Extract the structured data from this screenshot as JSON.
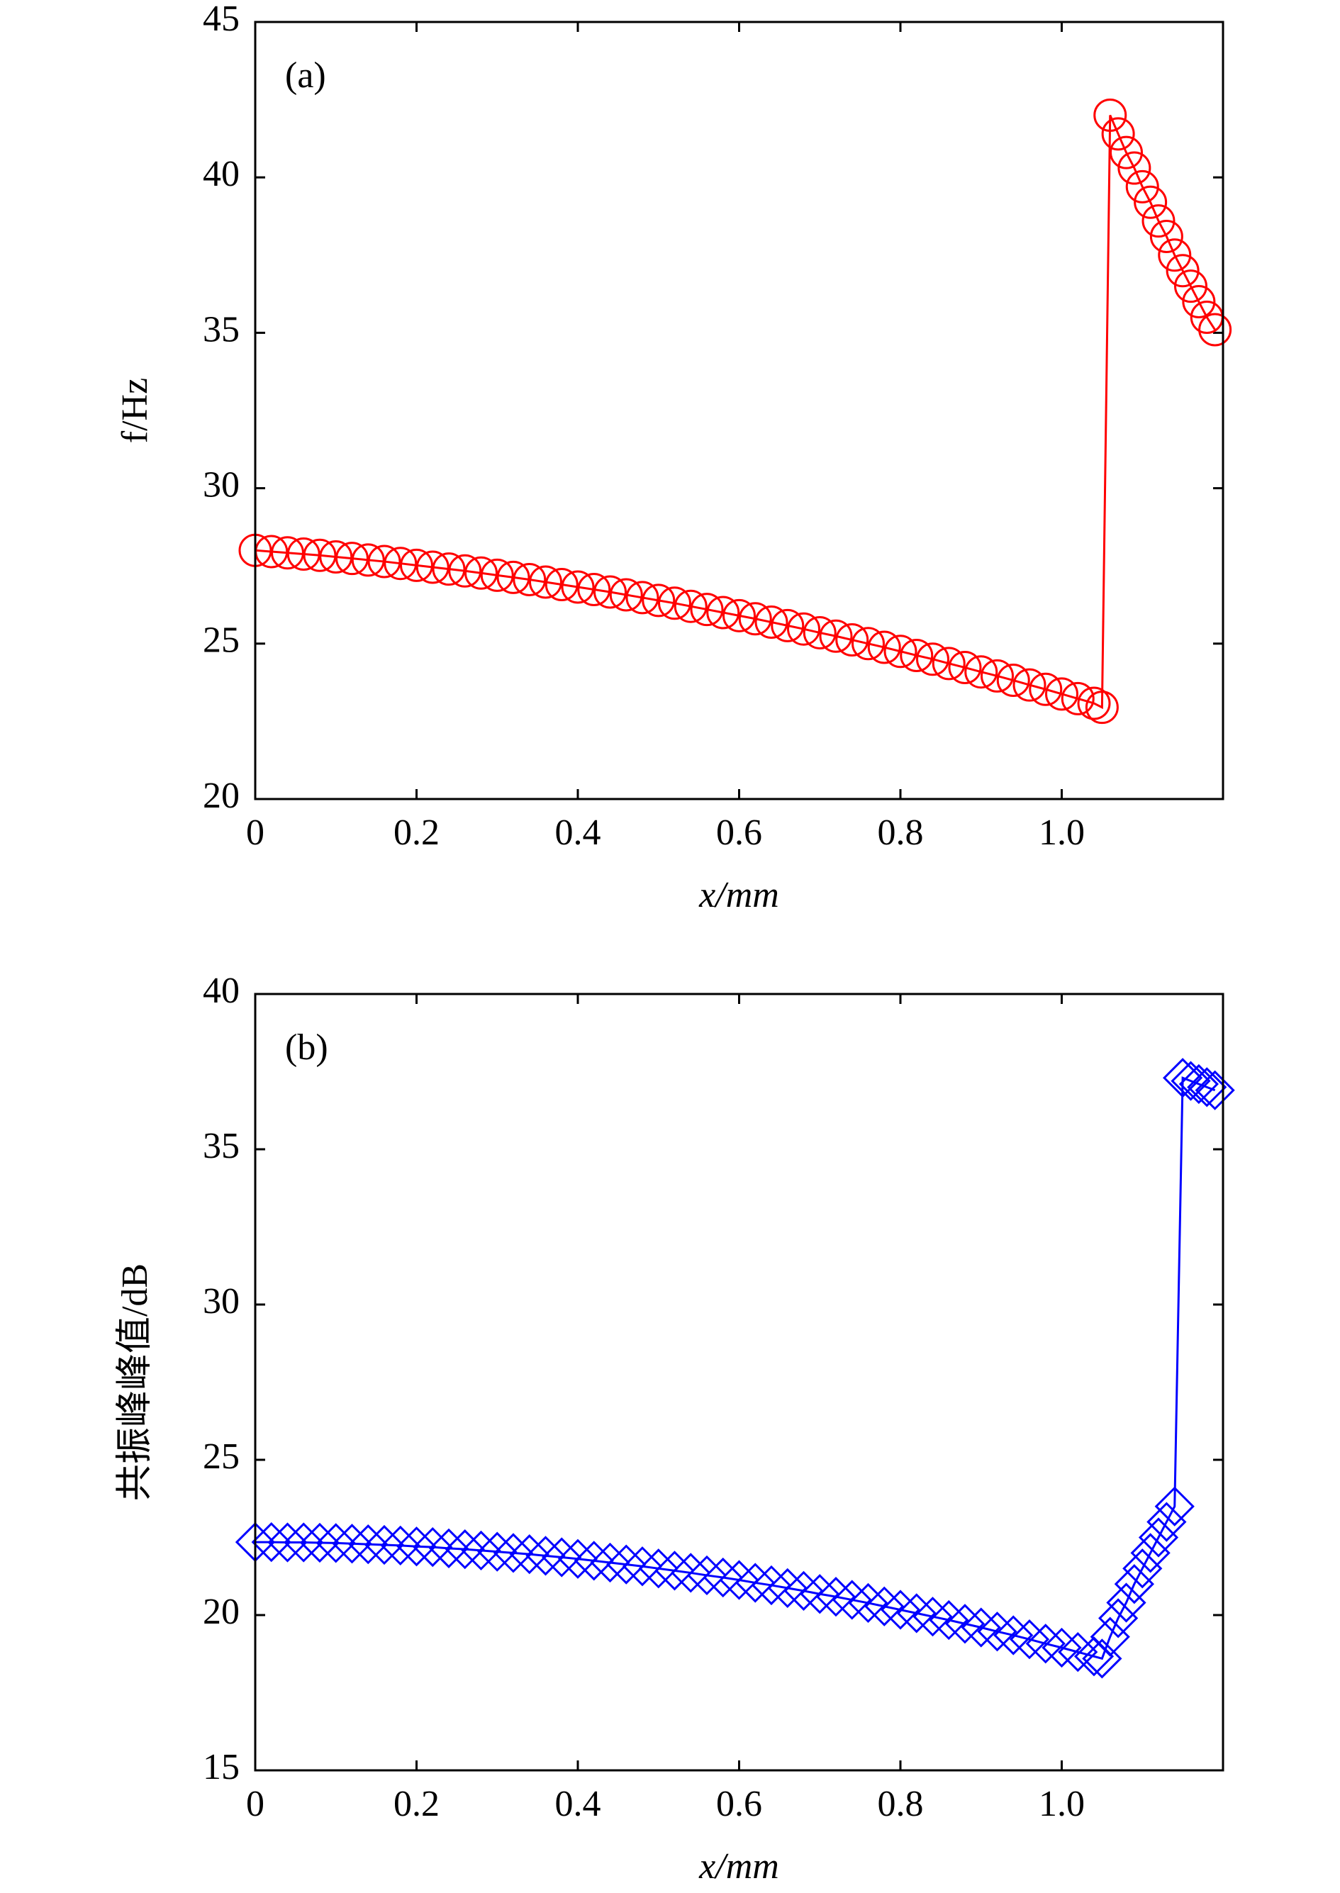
{
  "chart_data": [
    {
      "type": "line",
      "marker": "circle",
      "color": "#ff0000",
      "panel_label": "(a)",
      "x_label": "x/mm",
      "y_label": "f/Hz",
      "x": [
        0,
        0.02,
        0.04,
        0.06,
        0.08,
        0.1,
        0.12,
        0.14,
        0.16,
        0.18,
        0.2,
        0.22,
        0.24,
        0.26,
        0.28,
        0.3,
        0.32,
        0.34,
        0.36,
        0.38,
        0.4,
        0.42,
        0.44,
        0.46,
        0.48,
        0.5,
        0.52,
        0.54,
        0.56,
        0.58,
        0.6,
        0.62,
        0.64,
        0.66,
        0.68,
        0.7,
        0.72,
        0.74,
        0.76,
        0.78,
        0.8,
        0.82,
        0.84,
        0.86,
        0.88,
        0.9,
        0.92,
        0.94,
        0.96,
        0.98,
        1.0,
        1.02,
        1.04,
        1.05,
        1.06,
        1.07,
        1.08,
        1.09,
        1.1,
        1.11,
        1.12,
        1.13,
        1.14,
        1.15,
        1.16,
        1.17,
        1.18,
        1.19
      ],
      "values": [
        28.0,
        27.96,
        27.92,
        27.88,
        27.84,
        27.79,
        27.74,
        27.69,
        27.64,
        27.58,
        27.52,
        27.46,
        27.4,
        27.34,
        27.27,
        27.2,
        27.13,
        27.06,
        26.98,
        26.9,
        26.82,
        26.74,
        26.66,
        26.57,
        26.48,
        26.39,
        26.3,
        26.2,
        26.1,
        26.0,
        25.9,
        25.8,
        25.69,
        25.58,
        25.47,
        25.35,
        25.24,
        25.12,
        25.0,
        24.88,
        24.75,
        24.62,
        24.5,
        24.36,
        24.23,
        24.09,
        23.96,
        23.82,
        23.67,
        23.53,
        23.38,
        23.23,
        23.08,
        22.95,
        42.0,
        41.4,
        40.8,
        40.3,
        39.7,
        39.2,
        38.6,
        38.1,
        37.5,
        37.0,
        36.5,
        36.0,
        35.5,
        35.1
      ],
      "xlim": [
        0,
        1.2
      ],
      "xticks": [
        0,
        0.2,
        0.4,
        0.6,
        0.8,
        {
          "value": 1,
          "label": "1.0"
        }
      ],
      "ylim": [
        20,
        45
      ],
      "yticks": [
        20,
        25,
        30,
        35,
        40,
        45
      ]
    },
    {
      "type": "line",
      "marker": "diamond",
      "color": "#0000ff",
      "panel_label": "(b)",
      "x_label": "x/mm",
      "y_label": "共振峰峰值/dB",
      "x": [
        0,
        0.02,
        0.04,
        0.06,
        0.08,
        0.1,
        0.12,
        0.14,
        0.16,
        0.18,
        0.2,
        0.22,
        0.24,
        0.26,
        0.28,
        0.3,
        0.32,
        0.34,
        0.36,
        0.38,
        0.4,
        0.42,
        0.44,
        0.46,
        0.48,
        0.5,
        0.52,
        0.54,
        0.56,
        0.58,
        0.6,
        0.62,
        0.64,
        0.66,
        0.68,
        0.7,
        0.72,
        0.74,
        0.76,
        0.78,
        0.8,
        0.82,
        0.84,
        0.86,
        0.88,
        0.9,
        0.92,
        0.94,
        0.96,
        0.98,
        1.0,
        1.02,
        1.04,
        1.05,
        1.06,
        1.07,
        1.08,
        1.09,
        1.1,
        1.11,
        1.12,
        1.13,
        1.14,
        1.15,
        1.16,
        1.17,
        1.18,
        1.19
      ],
      "values": [
        22.35,
        22.35,
        22.34,
        22.34,
        22.33,
        22.32,
        22.3,
        22.28,
        22.26,
        22.24,
        22.21,
        22.19,
        22.15,
        22.12,
        22.08,
        22.04,
        22.0,
        21.96,
        21.91,
        21.86,
        21.81,
        21.75,
        21.69,
        21.63,
        21.57,
        21.5,
        21.43,
        21.36,
        21.28,
        21.21,
        21.13,
        21.04,
        20.96,
        20.87,
        20.78,
        20.68,
        20.59,
        20.49,
        20.39,
        20.28,
        20.17,
        20.06,
        19.95,
        19.84,
        19.72,
        19.6,
        19.47,
        19.35,
        19.22,
        19.08,
        18.95,
        18.81,
        18.67,
        18.6,
        19.3,
        19.9,
        20.4,
        21.0,
        21.5,
        22.0,
        22.5,
        23.0,
        23.5,
        37.3,
        37.2,
        37.1,
        37.0,
        36.9
      ],
      "xlim": [
        0,
        1.2
      ],
      "xticks": [
        0,
        0.2,
        0.4,
        0.6,
        0.8,
        {
          "value": 1,
          "label": "1.0"
        }
      ],
      "ylim": [
        15,
        40
      ],
      "yticks": [
        15,
        20,
        25,
        30,
        35,
        40
      ]
    }
  ]
}
